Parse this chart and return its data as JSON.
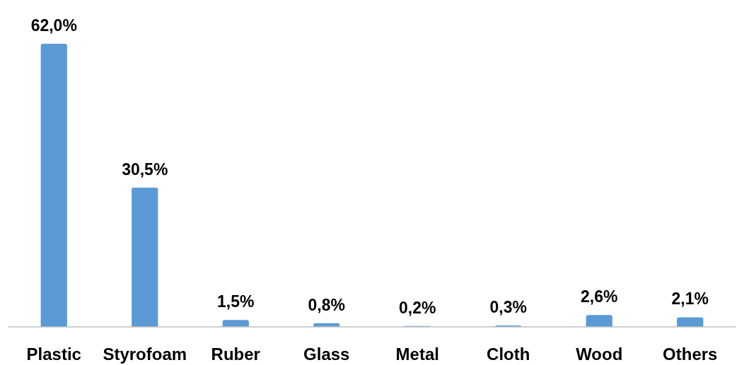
{
  "chart_data": {
    "type": "bar",
    "categories": [
      "Plastic",
      "Styrofoam",
      "Ruber",
      "Glass",
      "Metal",
      "Cloth",
      "Wood",
      "Others"
    ],
    "values": [
      62.0,
      30.5,
      1.5,
      0.8,
      0.2,
      0.3,
      2.6,
      2.1
    ],
    "value_labels": [
      "62,0%",
      "30,5%",
      "1,5%",
      "0,8%",
      "0,2%",
      "0,3%",
      "2,6%",
      "2,1%"
    ],
    "color": "#5b9bd5"
  }
}
